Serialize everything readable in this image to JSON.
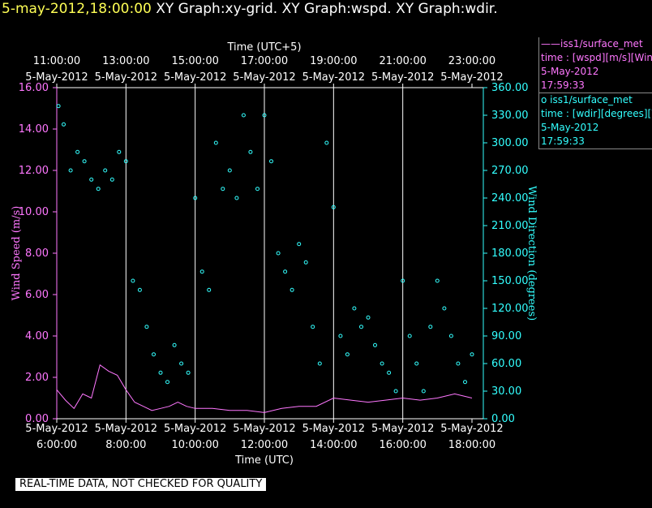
{
  "header": {
    "datetime": "5-may-2012,18:00:00",
    "graphs": "XY Graph:xy-grid.  XY Graph:wspd.  XY Graph:wdir."
  },
  "legend": {
    "wspd": {
      "name": "——iss1/surface_met",
      "var": "time : [wspd][m/s][Wind",
      "date": "5-May-2012",
      "time": "17:59:33"
    },
    "wdir": {
      "name": "o  iss1/surface_met",
      "var": "time : [wdir][degrees][W",
      "date": "5-May-2012",
      "time": "17:59:33"
    }
  },
  "footer": {
    "qc_notice": "REAL-TIME DATA, NOT CHECKED FOR QUALITY"
  },
  "colors": {
    "wspd": "#ff77ff",
    "wdir": "#33ffff",
    "grid": "#ffffff",
    "date": "#ffff55"
  },
  "chart_data": {
    "type": "line",
    "top_axis": {
      "label": "Time (UTC+5)",
      "ticks": [
        {
          "time": "11:00:00",
          "date": "5-May-2012"
        },
        {
          "time": "13:00:00",
          "date": "5-May-2012"
        },
        {
          "time": "15:00:00",
          "date": "5-May-2012"
        },
        {
          "time": "17:00:00",
          "date": "5-May-2012"
        },
        {
          "time": "19:00:00",
          "date": "5-May-2012"
        },
        {
          "time": "21:00:00",
          "date": "5-May-2012"
        },
        {
          "time": "23:00:00",
          "date": "5-May-2012"
        }
      ]
    },
    "bottom_axis": {
      "label": "Time (UTC)",
      "ticks": [
        {
          "time": "6:00:00",
          "date": "5-May-2012"
        },
        {
          "time": "8:00:00",
          "date": "5-May-2012"
        },
        {
          "time": "10:00:00",
          "date": "5-May-2012"
        },
        {
          "time": "12:00:00",
          "date": "5-May-2012"
        },
        {
          "time": "14:00:00",
          "date": "5-May-2012"
        },
        {
          "time": "16:00:00",
          "date": "5-May-2012"
        },
        {
          "time": "18:00:00",
          "date": "5-May-2012"
        }
      ]
    },
    "x_range_hours": [
      6,
      18
    ],
    "y_left": {
      "label": "Wind Speed (m/s)",
      "range": [
        0,
        16
      ],
      "ticks": [
        "0.00",
        "2.00",
        "4.00",
        "6.00",
        "8.00",
        "10.00",
        "12.00",
        "14.00",
        "16.00"
      ]
    },
    "y_right": {
      "label": "Wind Direction (degrees)",
      "range": [
        0,
        360
      ],
      "ticks": [
        "0.00",
        "30.00",
        "60.00",
        "90.00",
        "120.00",
        "150.00",
        "180.00",
        "210.00",
        "240.00",
        "270.00",
        "300.00",
        "330.00",
        "360.00"
      ]
    },
    "grid": "vertical lines at 2-hour ticks",
    "series": [
      {
        "name": "iss1/surface_met wspd [m/s]",
        "style": "line",
        "axis": "left",
        "points": [
          [
            6.0,
            1.4
          ],
          [
            6.25,
            0.9
          ],
          [
            6.5,
            0.5
          ],
          [
            6.75,
            1.2
          ],
          [
            7.0,
            1.0
          ],
          [
            7.25,
            2.6
          ],
          [
            7.5,
            2.3
          ],
          [
            7.75,
            2.1
          ],
          [
            8.0,
            1.4
          ],
          [
            8.25,
            0.8
          ],
          [
            8.5,
            0.6
          ],
          [
            8.75,
            0.4
          ],
          [
            9.0,
            0.5
          ],
          [
            9.25,
            0.6
          ],
          [
            9.5,
            0.8
          ],
          [
            9.75,
            0.6
          ],
          [
            10.0,
            0.5
          ],
          [
            10.5,
            0.5
          ],
          [
            11.0,
            0.4
          ],
          [
            11.5,
            0.4
          ],
          [
            12.0,
            0.3
          ],
          [
            12.5,
            0.5
          ],
          [
            13.0,
            0.6
          ],
          [
            13.5,
            0.6
          ],
          [
            14.0,
            1.0
          ],
          [
            14.5,
            0.9
          ],
          [
            15.0,
            0.8
          ],
          [
            15.5,
            0.9
          ],
          [
            16.0,
            1.0
          ],
          [
            16.5,
            0.9
          ],
          [
            17.0,
            1.0
          ],
          [
            17.5,
            1.2
          ],
          [
            18.0,
            1.0
          ]
        ]
      },
      {
        "name": "iss1/surface_met wdir [degrees]",
        "style": "circles",
        "axis": "right",
        "points": [
          [
            6.05,
            340
          ],
          [
            6.2,
            320
          ],
          [
            6.4,
            270
          ],
          [
            6.6,
            290
          ],
          [
            6.8,
            280
          ],
          [
            7.0,
            260
          ],
          [
            7.2,
            250
          ],
          [
            7.4,
            270
          ],
          [
            7.6,
            260
          ],
          [
            7.8,
            290
          ],
          [
            8.0,
            280
          ],
          [
            8.2,
            150
          ],
          [
            8.4,
            140
          ],
          [
            8.6,
            100
          ],
          [
            8.8,
            70
          ],
          [
            9.0,
            50
          ],
          [
            9.2,
            40
          ],
          [
            9.4,
            80
          ],
          [
            9.6,
            60
          ],
          [
            9.8,
            50
          ],
          [
            10.0,
            240
          ],
          [
            10.2,
            160
          ],
          [
            10.4,
            140
          ],
          [
            10.6,
            300
          ],
          [
            10.8,
            250
          ],
          [
            11.0,
            270
          ],
          [
            11.2,
            240
          ],
          [
            11.4,
            330
          ],
          [
            11.6,
            290
          ],
          [
            11.8,
            250
          ],
          [
            12.0,
            330
          ],
          [
            12.2,
            280
          ],
          [
            12.4,
            180
          ],
          [
            12.6,
            160
          ],
          [
            12.8,
            140
          ],
          [
            13.0,
            190
          ],
          [
            13.2,
            170
          ],
          [
            13.4,
            100
          ],
          [
            13.6,
            60
          ],
          [
            13.8,
            300
          ],
          [
            14.0,
            230
          ],
          [
            14.2,
            90
          ],
          [
            14.4,
            70
          ],
          [
            14.6,
            120
          ],
          [
            14.8,
            100
          ],
          [
            15.0,
            110
          ],
          [
            15.2,
            80
          ],
          [
            15.4,
            60
          ],
          [
            15.6,
            50
          ],
          [
            15.8,
            30
          ],
          [
            16.0,
            150
          ],
          [
            16.2,
            90
          ],
          [
            16.4,
            60
          ],
          [
            16.6,
            30
          ],
          [
            16.8,
            100
          ],
          [
            17.0,
            150
          ],
          [
            17.2,
            120
          ],
          [
            17.4,
            90
          ],
          [
            17.6,
            60
          ],
          [
            17.8,
            40
          ],
          [
            18.0,
            70
          ]
        ]
      }
    ]
  }
}
